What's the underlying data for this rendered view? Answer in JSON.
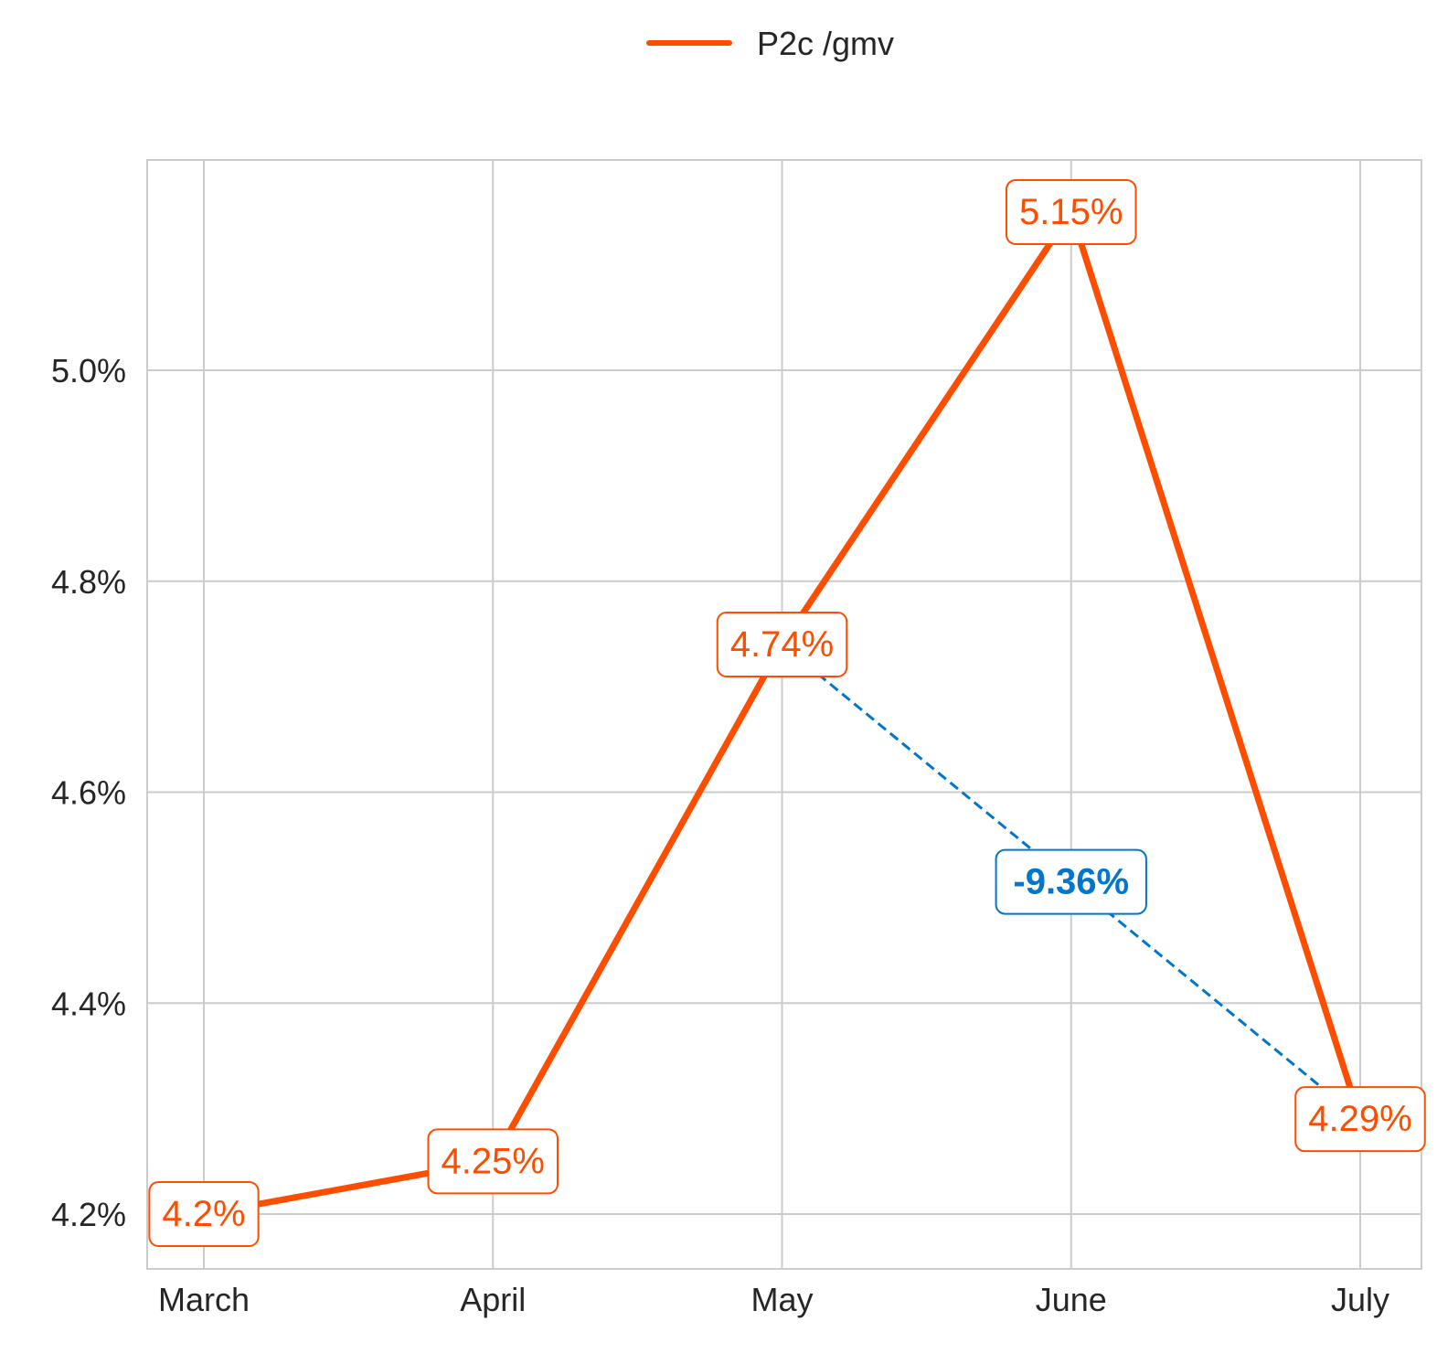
{
  "chart_data": {
    "type": "line",
    "categories": [
      "March",
      "April",
      "May",
      "June",
      "July"
    ],
    "series": [
      {
        "name": "P2c /gmv",
        "values": [
          4.2,
          4.25,
          4.74,
          5.15,
          4.29
        ],
        "color": "#ff4d00"
      }
    ],
    "data_labels": [
      "4.2%",
      "4.25%",
      "4.74%",
      "5.15%",
      "4.29%"
    ],
    "ylim": [
      4.15,
      5.2
    ],
    "yticks": [
      4.2,
      4.4,
      4.6,
      4.8,
      5.0
    ],
    "ytick_labels": [
      "4.2%",
      "4.4%",
      "4.6%",
      "4.8%",
      "5.0%"
    ],
    "grid": true,
    "legend_position": "top-center",
    "annotation": {
      "from_category": "May",
      "to_category": "July",
      "from_value": 4.74,
      "to_value": 4.29,
      "label": "-9.36%",
      "color": "#0077cc",
      "style": "dashed"
    },
    "title": "",
    "xlabel": "",
    "ylabel": ""
  }
}
